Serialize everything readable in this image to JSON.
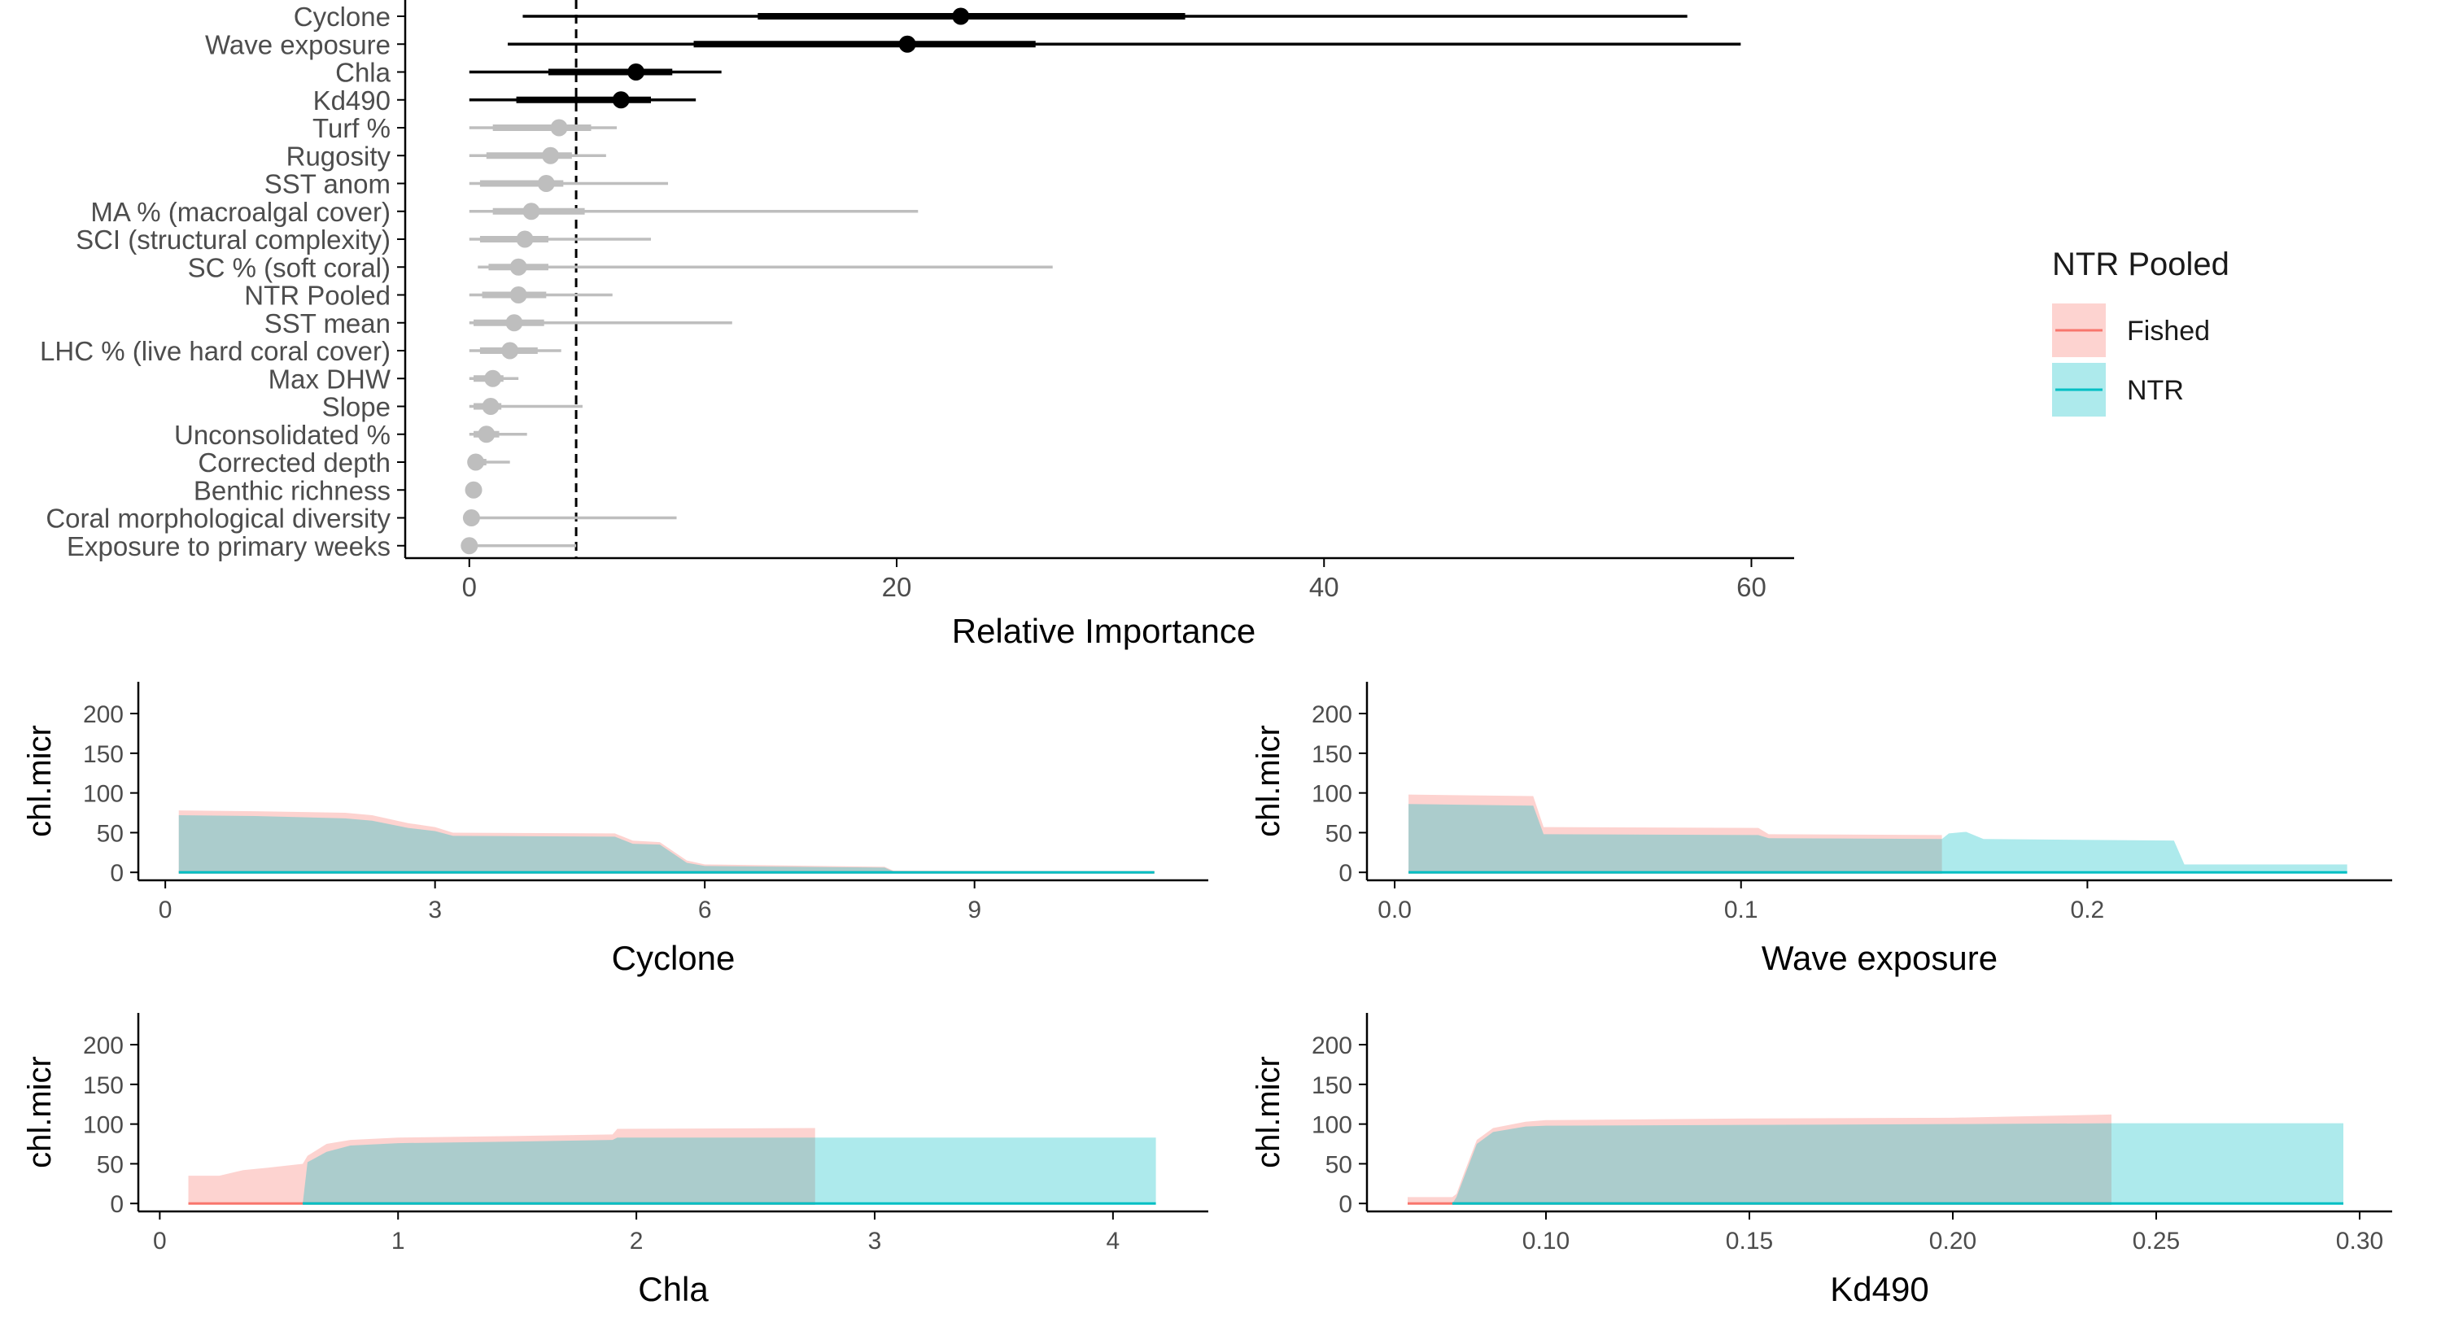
{
  "colors": {
    "fished_fill": "#F8766D",
    "ntr_fill": "#00BFC4",
    "fished_line": "#F8766D",
    "ntr_line": "#00BFC4",
    "significant": "#000000",
    "nonsignificant": "#BEBEBE",
    "axis": "#000000",
    "tick_text": "#4D4D4D"
  },
  "legend": {
    "title": "NTR Pooled",
    "entries": [
      {
        "label": "Fished",
        "color": "#F8766D"
      },
      {
        "label": "NTR",
        "color": "#00BFC4"
      }
    ]
  },
  "chart_data": [
    {
      "type": "dot-interval",
      "xlabel": "Relative Importance",
      "ylabel": "",
      "xlim": [
        -3,
        62
      ],
      "xticks": [
        0,
        20,
        40,
        60
      ],
      "threshold": 5,
      "threshold_style": "dashed",
      "variables": [
        {
          "name": "Cyclone",
          "median": 23,
          "inner": [
            13.5,
            33.5
          ],
          "outer": [
            2.5,
            57
          ],
          "significant": true
        },
        {
          "name": "Wave exposure",
          "median": 20.5,
          "inner": [
            10.5,
            26.5
          ],
          "outer": [
            1.8,
            59.5
          ],
          "significant": true
        },
        {
          "name": "Chla",
          "median": 7.8,
          "inner": [
            3.7,
            9.5
          ],
          "outer": [
            0,
            11.8
          ],
          "significant": true
        },
        {
          "name": "Kd490",
          "median": 7.1,
          "inner": [
            2.2,
            8.5
          ],
          "outer": [
            0,
            10.6
          ],
          "significant": true
        },
        {
          "name": "Turf %",
          "median": 4.2,
          "inner": [
            1.1,
            5.7
          ],
          "outer": [
            0,
            6.9
          ],
          "significant": false
        },
        {
          "name": "Rugosity",
          "median": 3.8,
          "inner": [
            0.8,
            4.8
          ],
          "outer": [
            0,
            6.4
          ],
          "significant": false
        },
        {
          "name": "SST anom",
          "median": 3.6,
          "inner": [
            0.5,
            4.4
          ],
          "outer": [
            0,
            9.3
          ],
          "significant": false
        },
        {
          "name": "MA % (macroalgal cover)",
          "median": 2.9,
          "inner": [
            1.1,
            5.4
          ],
          "outer": [
            0,
            21
          ],
          "significant": false
        },
        {
          "name": "SCI (structural complexity)",
          "median": 2.6,
          "inner": [
            0.5,
            3.7
          ],
          "outer": [
            0,
            8.5
          ],
          "significant": false
        },
        {
          "name": "SC % (soft coral)",
          "median": 2.3,
          "inner": [
            0.9,
            3.7
          ],
          "outer": [
            0.4,
            27.3
          ],
          "significant": false
        },
        {
          "name": "NTR Pooled",
          "median": 2.3,
          "inner": [
            0.6,
            3.6
          ],
          "outer": [
            0,
            6.7
          ],
          "significant": false
        },
        {
          "name": "SST mean",
          "median": 2.1,
          "inner": [
            0.2,
            3.5
          ],
          "outer": [
            0,
            12.3
          ],
          "significant": false
        },
        {
          "name": "LHC % (live hard coral cover)",
          "median": 1.9,
          "inner": [
            0.5,
            3.2
          ],
          "outer": [
            0,
            4.3
          ],
          "significant": false
        },
        {
          "name": "Max DHW",
          "median": 1.1,
          "inner": [
            0.2,
            1.6
          ],
          "outer": [
            0,
            2.3
          ],
          "significant": false
        },
        {
          "name": "Slope",
          "median": 1.0,
          "inner": [
            0.2,
            1.5
          ],
          "outer": [
            0,
            5.3
          ],
          "significant": false
        },
        {
          "name": "Unconsolidated %",
          "median": 0.8,
          "inner": [
            0.2,
            1.4
          ],
          "outer": [
            0,
            2.7
          ],
          "significant": false
        },
        {
          "name": "Corrected depth",
          "median": 0.3,
          "inner": [
            0,
            0.8
          ],
          "outer": [
            0,
            1.9
          ],
          "significant": false
        },
        {
          "name": "Benthic richness",
          "median": 0.2,
          "inner": [
            0,
            0.3
          ],
          "outer": [
            0,
            0.5
          ],
          "significant": false
        },
        {
          "name": "Coral morphological diversity",
          "median": 0.1,
          "inner": [
            0,
            0.4
          ],
          "outer": [
            0,
            9.7
          ],
          "significant": false
        },
        {
          "name": "Exposure to primary weeks",
          "median": 0.0,
          "inner": [
            0,
            0.3
          ],
          "outer": [
            0,
            5
          ],
          "significant": false
        }
      ]
    },
    {
      "type": "area",
      "xlabel": "Cyclone",
      "ylabel": "chl.micr",
      "xlim": [
        -0.3,
        11.6
      ],
      "ylim": [
        -10,
        240
      ],
      "xticks": [
        0,
        3,
        6,
        9
      ],
      "yticks": [
        0,
        50,
        100,
        150,
        200
      ],
      "series": [
        {
          "name": "Fished",
          "points": [
            [
              0.15,
              78
            ],
            [
              1.0,
              77
            ],
            [
              2.0,
              75
            ],
            [
              2.3,
              72
            ],
            [
              2.7,
              62
            ],
            [
              3.0,
              57
            ],
            [
              3.2,
              50
            ],
            [
              5.0,
              49
            ],
            [
              5.2,
              40
            ],
            [
              5.5,
              38
            ],
            [
              5.8,
              15
            ],
            [
              6.0,
              10
            ],
            [
              8.0,
              7
            ],
            [
              8.1,
              2
            ],
            [
              11.0,
              1
            ]
          ]
        },
        {
          "name": "NTR",
          "points": [
            [
              0.15,
              72
            ],
            [
              1.0,
              71
            ],
            [
              2.0,
              68
            ],
            [
              2.3,
              65
            ],
            [
              2.7,
              56
            ],
            [
              3.0,
              52
            ],
            [
              3.2,
              46
            ],
            [
              5.0,
              45
            ],
            [
              5.2,
              36
            ],
            [
              5.5,
              35
            ],
            [
              5.8,
              12
            ],
            [
              6.0,
              8
            ],
            [
              8.0,
              6
            ],
            [
              8.1,
              1
            ],
            [
              11.0,
              1
            ]
          ]
        }
      ]
    },
    {
      "type": "area",
      "xlabel": "Wave exposure",
      "ylabel": "chl.micr",
      "xlim": [
        -0.008,
        0.288
      ],
      "ylim": [
        -10,
        240
      ],
      "xticks": [
        0.0,
        0.1,
        0.2
      ],
      "yticks": [
        0,
        50,
        100,
        150,
        200
      ],
      "series": [
        {
          "name": "Fished",
          "points": [
            [
              0.004,
              98
            ],
            [
              0.04,
              96
            ],
            [
              0.043,
              57
            ],
            [
              0.105,
              56
            ],
            [
              0.108,
              48
            ],
            [
              0.158,
              47
            ]
          ]
        },
        {
          "name": "NTR",
          "points": [
            [
              0.004,
              86
            ],
            [
              0.04,
              84
            ],
            [
              0.043,
              48
            ],
            [
              0.105,
              47
            ],
            [
              0.108,
              43
            ],
            [
              0.158,
              42
            ],
            [
              0.16,
              49
            ],
            [
              0.165,
              51
            ],
            [
              0.17,
              42
            ],
            [
              0.225,
              40
            ],
            [
              0.228,
              10
            ],
            [
              0.275,
              10
            ]
          ]
        }
      ]
    },
    {
      "type": "area",
      "xlabel": "Chla",
      "ylabel": "chl.micr",
      "xlim": [
        -0.09,
        4.4
      ],
      "ylim": [
        -10,
        240
      ],
      "xticks": [
        0,
        1,
        2,
        3,
        4
      ],
      "yticks": [
        0,
        50,
        100,
        150,
        200
      ],
      "series": [
        {
          "name": "Fished",
          "points": [
            [
              0.12,
              35
            ],
            [
              0.25,
              35
            ],
            [
              0.35,
              42
            ],
            [
              0.45,
              45
            ],
            [
              0.6,
              50
            ],
            [
              0.62,
              60
            ],
            [
              0.7,
              75
            ],
            [
              0.8,
              80
            ],
            [
              1.0,
              83
            ],
            [
              1.5,
              85
            ],
            [
              1.9,
              87
            ],
            [
              1.92,
              94
            ],
            [
              2.75,
              95
            ]
          ]
        },
        {
          "name": "NTR",
          "points": [
            [
              0.6,
              0
            ],
            [
              0.62,
              52
            ],
            [
              0.7,
              65
            ],
            [
              0.8,
              73
            ],
            [
              1.0,
              76
            ],
            [
              1.5,
              78
            ],
            [
              1.9,
              80
            ],
            [
              1.92,
              83
            ],
            [
              2.75,
              83
            ],
            [
              4.18,
              83
            ]
          ]
        }
      ]
    },
    {
      "type": "area",
      "xlabel": "Kd490",
      "ylabel": "chl.micr",
      "xlim": [
        0.056,
        0.308
      ],
      "ylim": [
        -10,
        240
      ],
      "xticks": [
        0.1,
        0.15,
        0.2,
        0.25,
        0.3
      ],
      "yticks": [
        0,
        50,
        100,
        150,
        200
      ],
      "series": [
        {
          "name": "Fished",
          "points": [
            [
              0.066,
              8
            ],
            [
              0.077,
              8
            ],
            [
              0.078,
              12
            ],
            [
              0.08,
              40
            ],
            [
              0.083,
              80
            ],
            [
              0.087,
              95
            ],
            [
              0.095,
              103
            ],
            [
              0.1,
              105
            ],
            [
              0.15,
              107
            ],
            [
              0.2,
              108
            ],
            [
              0.239,
              112
            ]
          ]
        },
        {
          "name": "NTR",
          "points": [
            [
              0.077,
              0
            ],
            [
              0.078,
              8
            ],
            [
              0.08,
              35
            ],
            [
              0.083,
              75
            ],
            [
              0.087,
              90
            ],
            [
              0.095,
              97
            ],
            [
              0.1,
              98
            ],
            [
              0.15,
              99
            ],
            [
              0.2,
              100
            ],
            [
              0.239,
              101
            ],
            [
              0.296,
              101
            ]
          ]
        }
      ]
    }
  ]
}
